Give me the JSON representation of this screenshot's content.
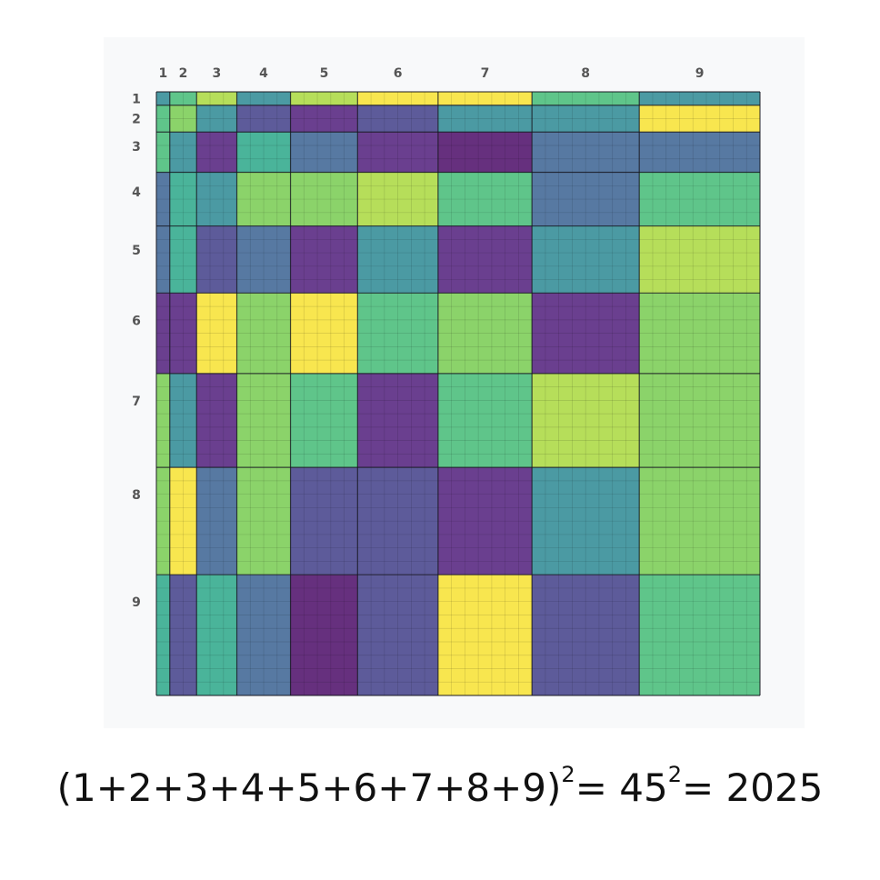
{
  "grid": {
    "column_labels": [
      "1",
      "2",
      "3",
      "4",
      "5",
      "6",
      "7",
      "8",
      "9"
    ],
    "row_labels": [
      "1",
      "2",
      "3",
      "4",
      "5",
      "6",
      "7",
      "8",
      "9"
    ],
    "block_sizes": [
      1,
      2,
      3,
      4,
      5,
      6,
      7,
      8,
      9
    ],
    "colors": {
      "y": "#f8e64f",
      "yg": "#b6de5a",
      "g": "#8bd36a",
      "lg": "#5fc58a",
      "tg": "#4ab49a",
      "t": "#4b9aa3",
      "b": "#5779a2",
      "i": "#5d5b9a",
      "p": "#6a3f8f",
      "dp": "#66307e"
    },
    "cell_colors": [
      [
        "t",
        "lg",
        "yg",
        "t",
        "yg",
        "y",
        "y",
        "lg",
        "t"
      ],
      [
        "lg",
        "g",
        "t",
        "i",
        "p",
        "i",
        "t",
        "t",
        "y"
      ],
      [
        "lg",
        "t",
        "p",
        "tg",
        "b",
        "p",
        "dp",
        "b",
        "b"
      ],
      [
        "b",
        "tg",
        "t",
        "g",
        "g",
        "yg",
        "lg",
        "b",
        "lg"
      ],
      [
        "b",
        "tg",
        "i",
        "b",
        "p",
        "t",
        "p",
        "t",
        "yg"
      ],
      [
        "p",
        "p",
        "y",
        "g",
        "y",
        "lg",
        "g",
        "p",
        "g"
      ],
      [
        "g",
        "t",
        "p",
        "g",
        "lg",
        "p",
        "lg",
        "yg",
        "g"
      ],
      [
        "g",
        "y",
        "b",
        "g",
        "i",
        "i",
        "p",
        "t",
        "g"
      ],
      [
        "tg",
        "i",
        "tg",
        "b",
        "dp",
        "i",
        "y",
        "i",
        "lg"
      ]
    ]
  },
  "equation": {
    "base": "(1+2+3+4+5+6+7+8+9)",
    "exp1": "2",
    "mid": "= 45",
    "exp2": "2",
    "result": "= 2025"
  }
}
